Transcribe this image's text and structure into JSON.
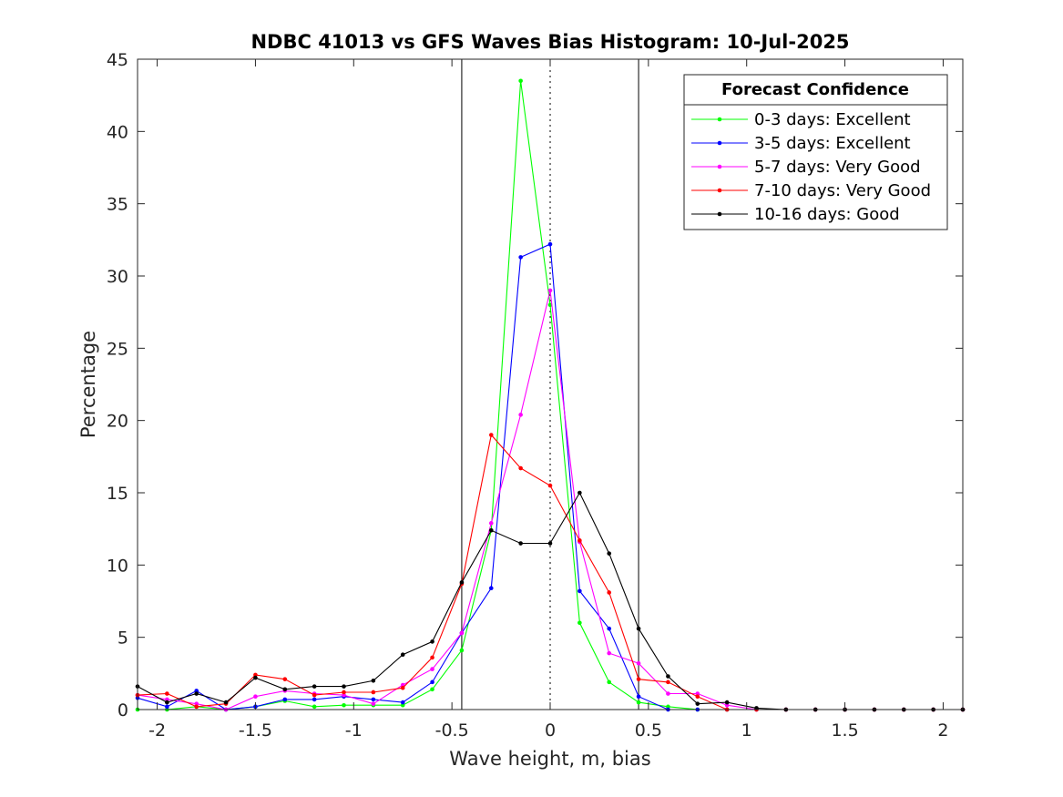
{
  "chart_data": {
    "type": "line",
    "title": "NDBC 41013 vs GFS Waves Bias Histogram: 10-Jul-2025",
    "xlabel": "Wave height, m, bias",
    "ylabel": "Percentage",
    "xlim": [
      -2.1,
      2.1
    ],
    "ylim": [
      0,
      45
    ],
    "xticks": [
      -2,
      -1.5,
      -1,
      -0.5,
      0,
      0.5,
      1,
      1.5,
      2
    ],
    "xtick_labels": [
      "-2",
      "-1.5",
      "-1",
      "-0.5",
      "0",
      "0.5",
      "1",
      "1.5",
      "2"
    ],
    "yticks": [
      0,
      5,
      10,
      15,
      20,
      25,
      30,
      35,
      40,
      45
    ],
    "ytick_labels": [
      "0",
      "5",
      "10",
      "15",
      "20",
      "25",
      "30",
      "35",
      "40",
      "45"
    ],
    "grid": false,
    "legend": {
      "title": "Forecast Confidence",
      "location": "top-right"
    },
    "reference_lines": [
      {
        "x": -0.45,
        "style": "solid"
      },
      {
        "x": 0,
        "style": "dotted"
      },
      {
        "x": 0.45,
        "style": "solid"
      }
    ],
    "x": [
      -2.1,
      -1.95,
      -1.8,
      -1.65,
      -1.5,
      -1.35,
      -1.2,
      -1.05,
      -0.9,
      -0.75,
      -0.6,
      -0.45,
      -0.3,
      -0.15,
      0,
      0.15,
      0.3,
      0.45,
      0.6,
      0.75,
      0.9,
      1.05,
      1.2,
      1.35,
      1.5,
      1.65,
      1.8,
      1.95,
      2.1
    ],
    "series": [
      {
        "name": "0-3 days: Excellent",
        "color": "#00ff00",
        "values": [
          0,
          0,
          0.2,
          0,
          0.2,
          0.6,
          0.2,
          0.3,
          0.3,
          0.3,
          1.4,
          4.1,
          12.4,
          43.5,
          28,
          6,
          1.9,
          0.5,
          0.2,
          0,
          0,
          0,
          0,
          0,
          0,
          0,
          0,
          0,
          0
        ]
      },
      {
        "name": "3-5 days: Excellent",
        "color": "#0000ff",
        "values": [
          0.8,
          0.2,
          1.3,
          0,
          0.2,
          0.7,
          0.7,
          0.9,
          0.7,
          0.5,
          1.9,
          5.3,
          8.4,
          31.3,
          32.2,
          8.2,
          5.6,
          0.9,
          0,
          0,
          0,
          0,
          0,
          0,
          0,
          0,
          0,
          0,
          0
        ]
      },
      {
        "name": "5-7 days: Very Good",
        "color": "#ff00ff",
        "values": [
          1,
          0.7,
          0.4,
          0,
          0.9,
          1.3,
          1.1,
          1,
          0.4,
          1.7,
          2.8,
          5.3,
          12.9,
          20.4,
          29,
          11.6,
          3.9,
          3.2,
          1.1,
          1.1,
          0.3,
          0,
          0,
          0,
          0,
          0,
          0,
          0,
          0
        ]
      },
      {
        "name": "7-10 days: Very Good",
        "color": "#ff0000",
        "values": [
          1,
          1.1,
          0.2,
          0.4,
          2.4,
          2.1,
          1,
          1.2,
          1.2,
          1.5,
          3.6,
          8.7,
          19,
          16.7,
          15.5,
          11.7,
          8.1,
          2.1,
          1.9,
          0.9,
          0,
          0,
          0,
          0,
          0,
          0,
          0,
          0,
          0
        ]
      },
      {
        "name": "10-16 days: Good",
        "color": "#000000",
        "values": [
          1.6,
          0.5,
          1.1,
          0.5,
          2.2,
          1.4,
          1.6,
          1.6,
          2,
          3.8,
          4.7,
          8.8,
          12.4,
          11.5,
          11.5,
          15,
          10.8,
          5.6,
          2.3,
          0.4,
          0.5,
          0.1,
          0,
          0,
          0,
          0,
          0,
          0,
          0
        ]
      }
    ]
  }
}
